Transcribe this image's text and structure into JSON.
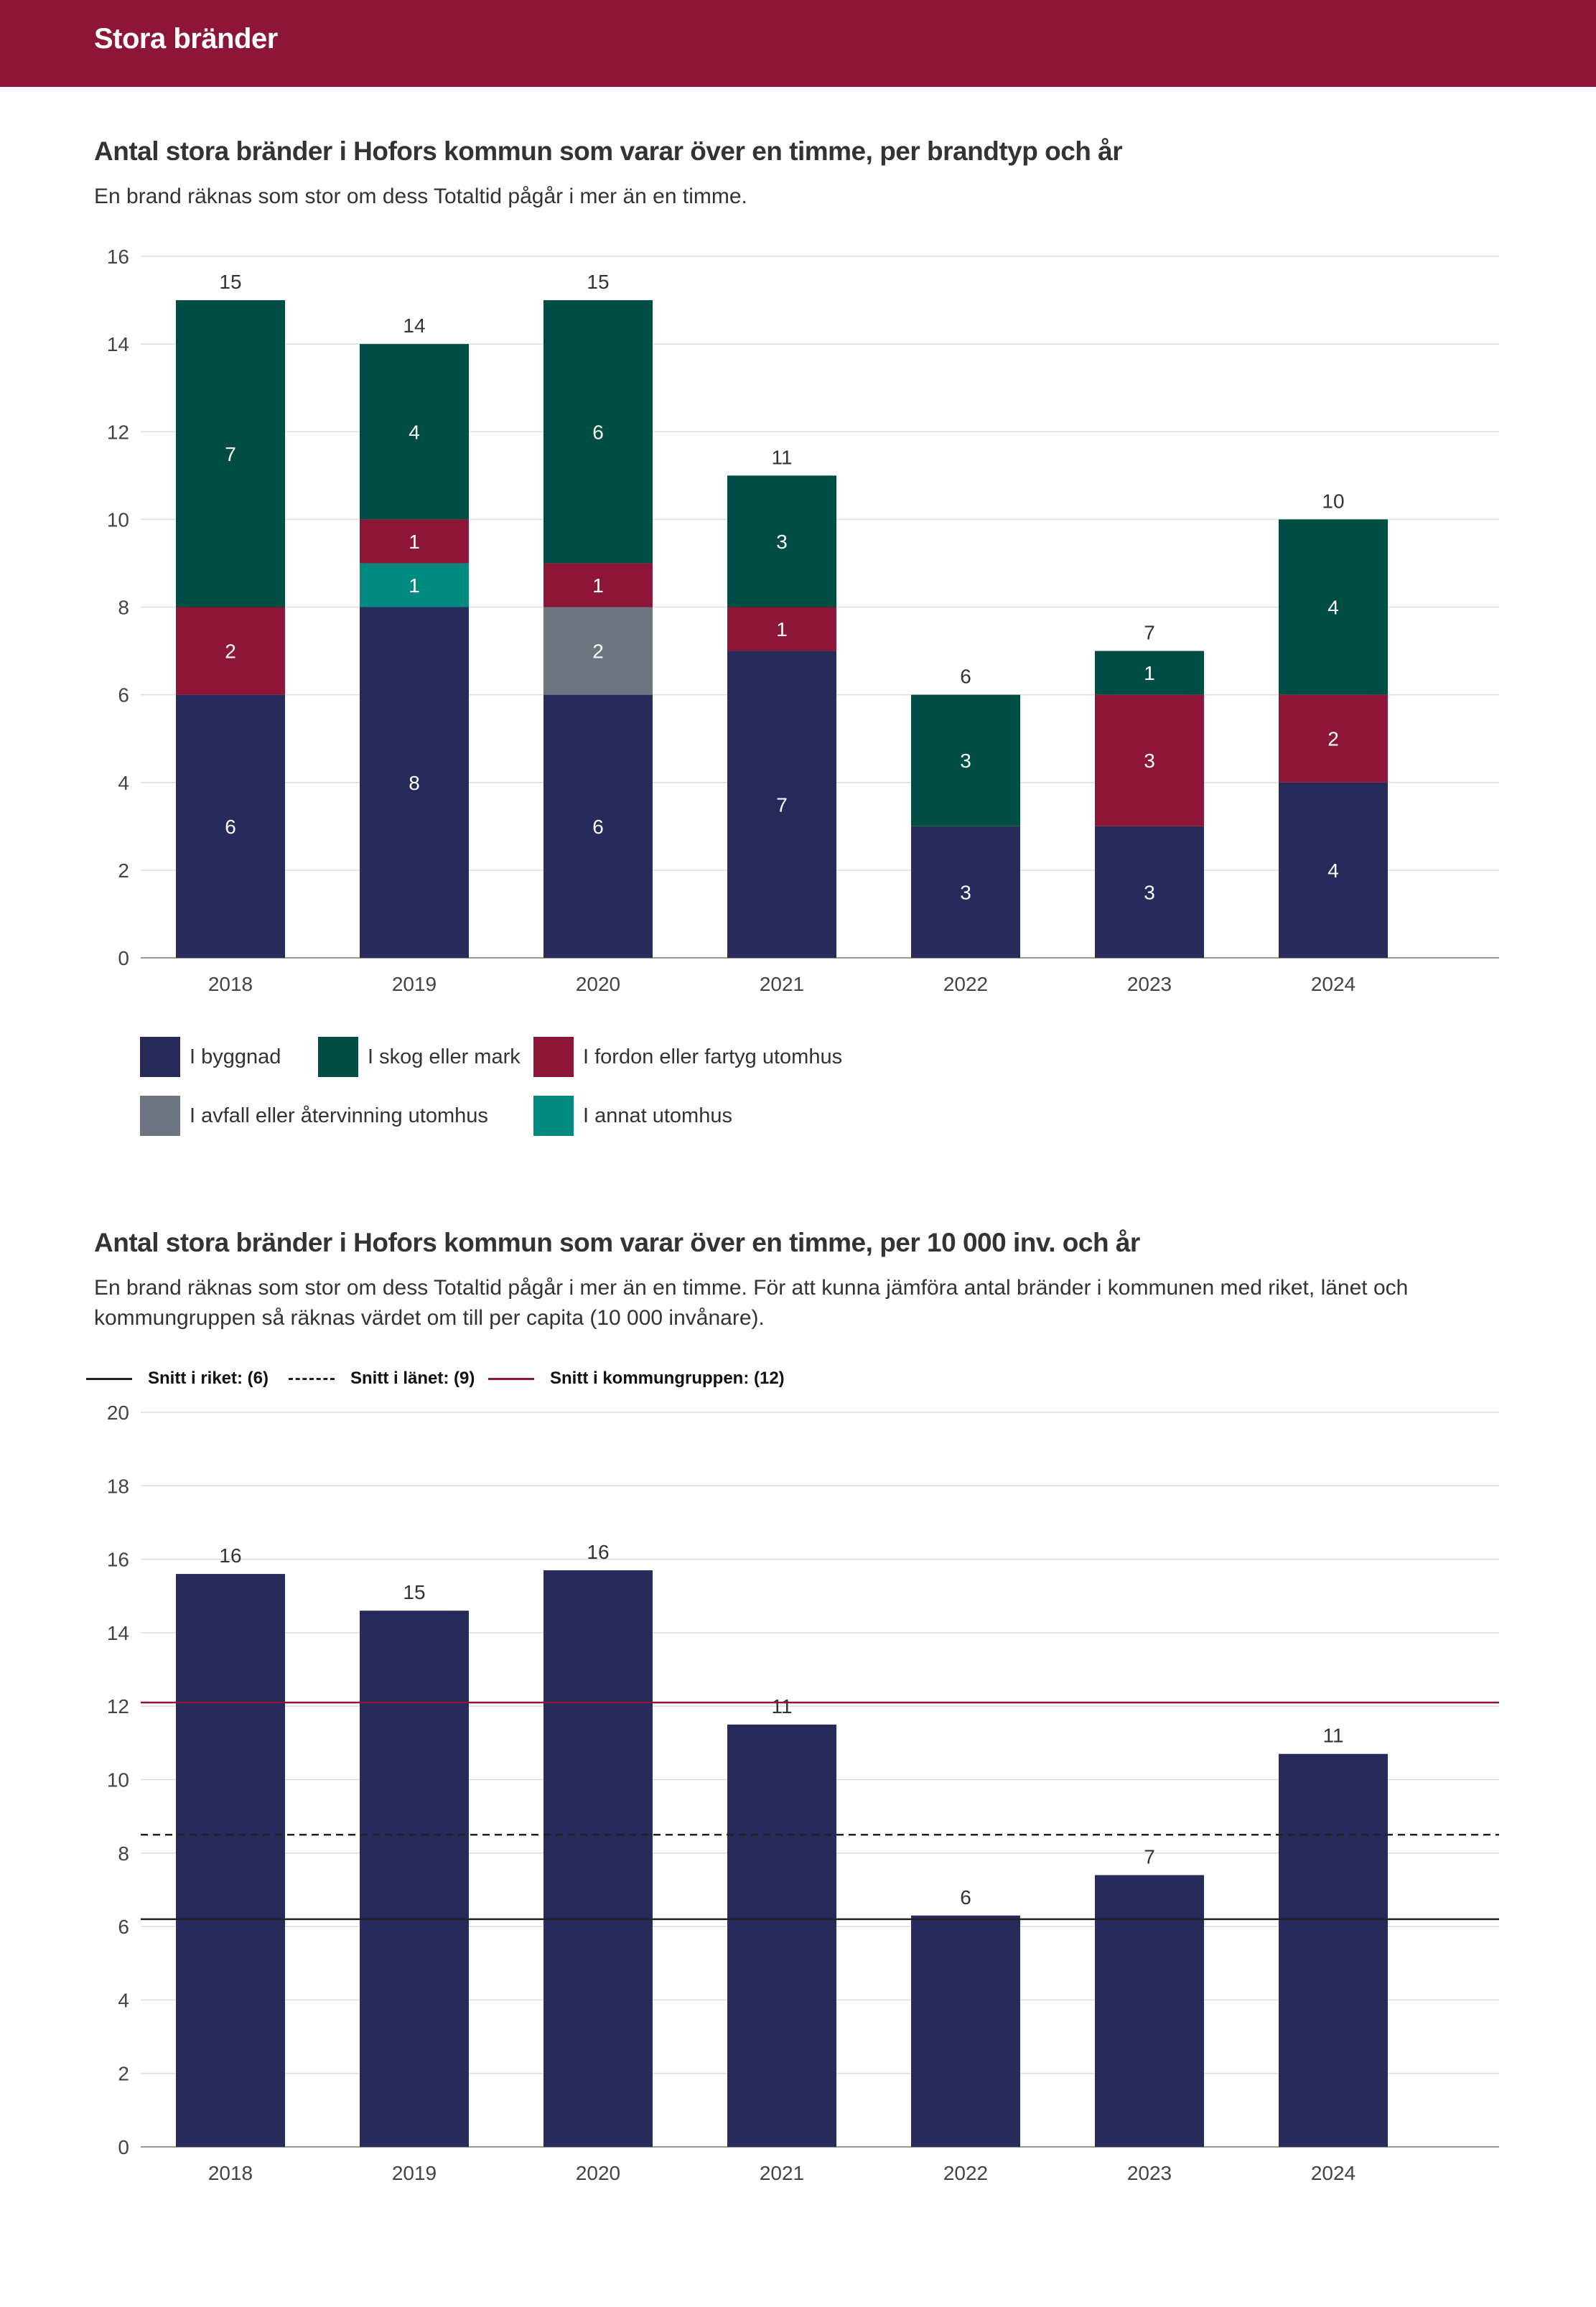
{
  "header": {
    "title": "Stora bränder"
  },
  "section1": {
    "title": "Antal stora bränder i Hofors kommun som varar över en timme, per brandtyp och år",
    "subtitle": "En brand räknas som stor om dess Totaltid pågår i mer än en timme."
  },
  "section2": {
    "title": "Antal stora bränder i Hofors kommun som varar över en timme, per 10 000 inv. och år",
    "subtitle": "En brand räknas som stor om dess Totaltid pågår i mer än en timme. För att kunna jämföra antal bränder i kommunen med riket, länet och kommungruppen så räknas värdet om till per capita (10 000 invånare)."
  },
  "chart_data": [
    {
      "type": "bar",
      "stacked": true,
      "categories": [
        "2018",
        "2019",
        "2020",
        "2021",
        "2022",
        "2023",
        "2024"
      ],
      "series": [
        {
          "name": "I byggnad",
          "color": "#262b5c",
          "values": [
            6,
            8,
            6,
            7,
            3,
            3,
            4
          ]
        },
        {
          "name": "I avfall eller återvinning utomhus",
          "color": "#6e7480",
          "values": [
            0,
            0,
            2,
            0,
            0,
            0,
            0
          ]
        },
        {
          "name": "I annat utomhus",
          "color": "#008a80",
          "values": [
            0,
            1,
            0,
            0,
            0,
            0,
            0
          ]
        },
        {
          "name": "I fordon eller fartyg utomhus",
          "color": "#8c1538",
          "values": [
            2,
            1,
            1,
            1,
            0,
            3,
            2
          ]
        },
        {
          "name": "I skog eller mark",
          "color": "#004d44",
          "values": [
            7,
            4,
            6,
            3,
            3,
            1,
            4
          ]
        }
      ],
      "totals": [
        15,
        14,
        15,
        11,
        6,
        7,
        10
      ],
      "ylim": [
        0,
        16
      ],
      "yticks": [
        0,
        2,
        4,
        6,
        8,
        10,
        12,
        14,
        16
      ],
      "grid": true,
      "legend": {
        "position": "bottom",
        "items": [
          {
            "label": "I byggnad",
            "color": "#262b5c"
          },
          {
            "label": "I skog eller mark",
            "color": "#004d44"
          },
          {
            "label": "I fordon eller fartyg utomhus",
            "color": "#8c1538"
          },
          {
            "label": "I avfall eller återvinning utomhus",
            "color": "#6e7480"
          },
          {
            "label": "I annat utomhus",
            "color": "#008a80"
          }
        ]
      }
    },
    {
      "type": "bar",
      "categories": [
        "2018",
        "2019",
        "2020",
        "2021",
        "2022",
        "2023",
        "2024"
      ],
      "values": [
        15.6,
        14.6,
        15.7,
        11.5,
        6.3,
        7.4,
        10.7
      ],
      "value_labels": [
        "16",
        "15",
        "16",
        "11",
        "6",
        "7",
        "11"
      ],
      "bar_color": "#262b5c",
      "ylim": [
        0,
        20
      ],
      "yticks": [
        0,
        2,
        4,
        6,
        8,
        10,
        12,
        14,
        16,
        18,
        20
      ],
      "grid": true,
      "reference_lines": [
        {
          "label": "Snitt i riket: (6)",
          "value": 6.2,
          "style": "solid",
          "color": "#222222"
        },
        {
          "label": "Snitt i länet: (9)",
          "value": 8.5,
          "style": "dashed",
          "color": "#222222"
        },
        {
          "label": "Snitt i kommungruppen: (12)",
          "value": 12.1,
          "style": "solid",
          "color": "#8c1538"
        }
      ]
    }
  ]
}
